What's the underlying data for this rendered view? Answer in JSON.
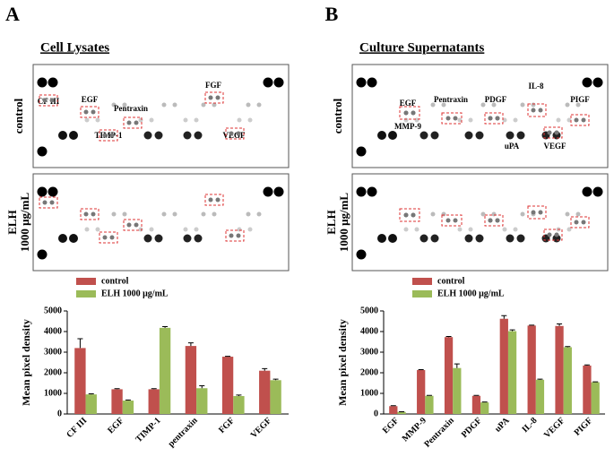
{
  "figure": {
    "panels": [
      {
        "letter": "A",
        "title": "Cell Lysates",
        "row_labels": [
          [
            "control"
          ],
          [
            "ELH",
            "1000 μg/mL"
          ]
        ],
        "spot_labels": [
          "CF III",
          "EGF",
          "TIMP-1",
          "Pentraxin",
          "FGF",
          "VEGF"
        ]
      },
      {
        "letter": "B",
        "title": "Culture Supernatants",
        "row_labels": [
          [
            "control"
          ],
          [
            "ELH",
            "1000 μg/mL"
          ]
        ],
        "spot_labels": [
          "EGF",
          "MMP-9",
          "Pentraxin",
          "PDGF",
          "uPA",
          "IL-8",
          "VEGF",
          "PIGF"
        ]
      }
    ]
  },
  "chart_data": [
    {
      "type": "bar",
      "y_label": "Mean pixel density",
      "legend": "top",
      "categories": [
        "CF III",
        "EGF",
        "TIMP-1",
        "pentraxin",
        "FGF",
        "VEGF"
      ],
      "series": [
        {
          "name": "control",
          "color": "#c0504d",
          "values": [
            3200,
            1200,
            1200,
            3300,
            2780,
            2100
          ],
          "errors": [
            450,
            30,
            30,
            150,
            20,
            100
          ]
        },
        {
          "name": "ELH 1000 μg/mL",
          "color": "#9bbb59",
          "values": [
            950,
            650,
            4180,
            1250,
            870,
            1640
          ],
          "errors": [
            30,
            30,
            60,
            120,
            50,
            50
          ]
        }
      ],
      "ylim": [
        0,
        5000
      ],
      "yticks": [
        0,
        1000,
        2000,
        3000,
        4000,
        5000
      ]
    },
    {
      "type": "bar",
      "y_label": "Mean pixel density",
      "legend": "top",
      "categories": [
        "EGF",
        "MMP-9",
        "Pentraxin",
        "PDGF",
        "uPA",
        "IL-8",
        "VEGF",
        "PIGF"
      ],
      "series": [
        {
          "name": "control",
          "color": "#c0504d",
          "values": [
            380,
            2130,
            3730,
            880,
            4620,
            4290,
            4270,
            2350
          ],
          "errors": [
            20,
            20,
            30,
            20,
            150,
            20,
            100,
            30
          ]
        },
        {
          "name": "ELH 1000 μg/mL",
          "color": "#9bbb59",
          "values": [
            100,
            880,
            2230,
            560,
            4020,
            1660,
            3240,
            1540
          ],
          "errors": [
            10,
            20,
            200,
            20,
            60,
            30,
            30,
            20
          ]
        }
      ],
      "ylim": [
        0,
        5000
      ],
      "yticks": [
        0,
        1000,
        2000,
        3000,
        4000,
        5000
      ]
    }
  ]
}
